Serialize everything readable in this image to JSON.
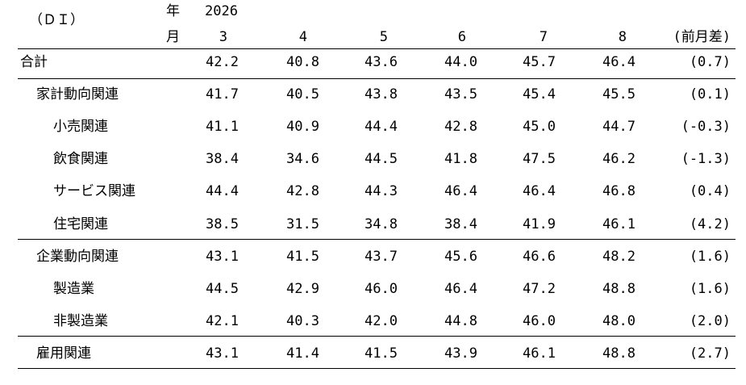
{
  "header": {
    "unit_label": "（ＤＩ）",
    "year_label": "年",
    "month_label": "月",
    "year_value": "2026",
    "months": [
      "3",
      "4",
      "5",
      "6",
      "7",
      "8"
    ],
    "diff_label": "(前月差)"
  },
  "rows": [
    {
      "label": "合計",
      "indent": 0,
      "values": [
        "42.2",
        "40.8",
        "43.6",
        "44.0",
        "45.7",
        "46.4"
      ],
      "diff": "(0.7)"
    },
    {
      "label": "家計動向関連",
      "indent": 1,
      "values": [
        "41.7",
        "40.5",
        "43.8",
        "43.5",
        "45.4",
        "45.5"
      ],
      "diff": "(0.1)"
    },
    {
      "label": "小売関連",
      "indent": 2,
      "values": [
        "41.1",
        "40.9",
        "44.4",
        "42.8",
        "45.0",
        "44.7"
      ],
      "diff": "(-0.3)"
    },
    {
      "label": "飲食関連",
      "indent": 2,
      "values": [
        "38.4",
        "34.6",
        "44.5",
        "41.8",
        "47.5",
        "46.2"
      ],
      "diff": "(-1.3)"
    },
    {
      "label": "サービス関連",
      "indent": 2,
      "values": [
        "44.4",
        "42.8",
        "44.3",
        "46.4",
        "46.4",
        "46.8"
      ],
      "diff": "(0.4)"
    },
    {
      "label": "住宅関連",
      "indent": 2,
      "values": [
        "38.5",
        "31.5",
        "34.8",
        "38.4",
        "41.9",
        "46.1"
      ],
      "diff": "(4.2)"
    },
    {
      "label": "企業動向関連",
      "indent": 1,
      "values": [
        "43.1",
        "41.5",
        "43.7",
        "45.6",
        "46.6",
        "48.2"
      ],
      "diff": "(1.6)"
    },
    {
      "label": "製造業",
      "indent": 2,
      "values": [
        "44.5",
        "42.9",
        "46.0",
        "46.4",
        "47.2",
        "48.8"
      ],
      "diff": "(1.6)"
    },
    {
      "label": "非製造業",
      "indent": 2,
      "values": [
        "42.1",
        "40.3",
        "42.0",
        "44.8",
        "46.0",
        "48.0"
      ],
      "diff": "(2.0)"
    },
    {
      "label": "雇用関連",
      "indent": 1,
      "values": [
        "43.1",
        "41.4",
        "41.5",
        "43.9",
        "46.1",
        "48.8"
      ],
      "diff": "(2.7)"
    }
  ]
}
